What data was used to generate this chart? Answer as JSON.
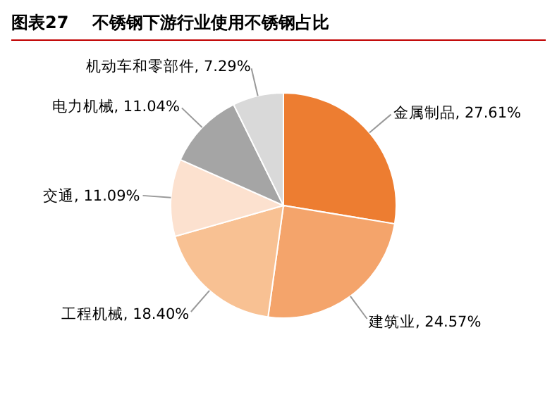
{
  "chart_data": {
    "type": "pie",
    "title": "图表27    不锈钢下游行业使用不锈钢占比",
    "categories": [
      "金属制品",
      "建筑业",
      "工程机械",
      "交通",
      "电力机械",
      "机动车和零部件"
    ],
    "values": [
      27.61,
      24.57,
      18.4,
      11.09,
      11.04,
      7.29
    ],
    "value_labels": [
      "27.61%",
      "24.57%",
      "18.40%",
      "11.09%",
      "11.04%",
      "7.29%"
    ],
    "colors": [
      "#ed7d31",
      "#f4a46b",
      "#f8c193",
      "#fce1cf",
      "#a5a5a5",
      "#d9d9d9"
    ],
    "legend": false
  }
}
